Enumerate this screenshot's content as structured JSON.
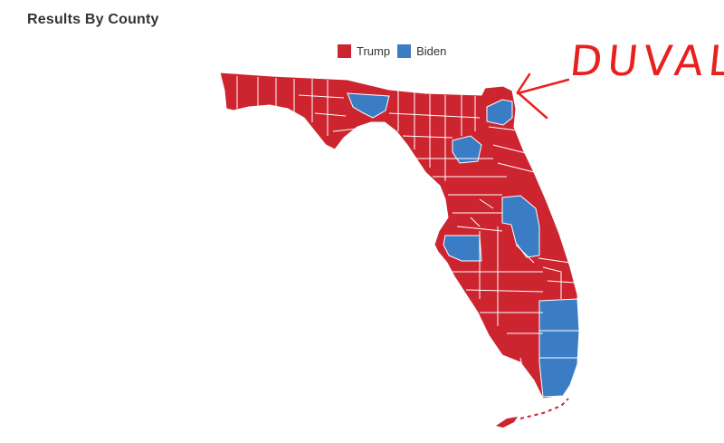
{
  "header": {
    "title": "Results By County"
  },
  "legend": [
    {
      "label": "Trump",
      "color": "#cc2530"
    },
    {
      "label": "Biden",
      "color": "#3b7dc4"
    }
  ],
  "annotation": {
    "text": "DUVAL",
    "color": "#e8201e"
  },
  "colors": {
    "trump": "#cc2530",
    "biden": "#3b7dc4",
    "border": "#ffffff"
  }
}
